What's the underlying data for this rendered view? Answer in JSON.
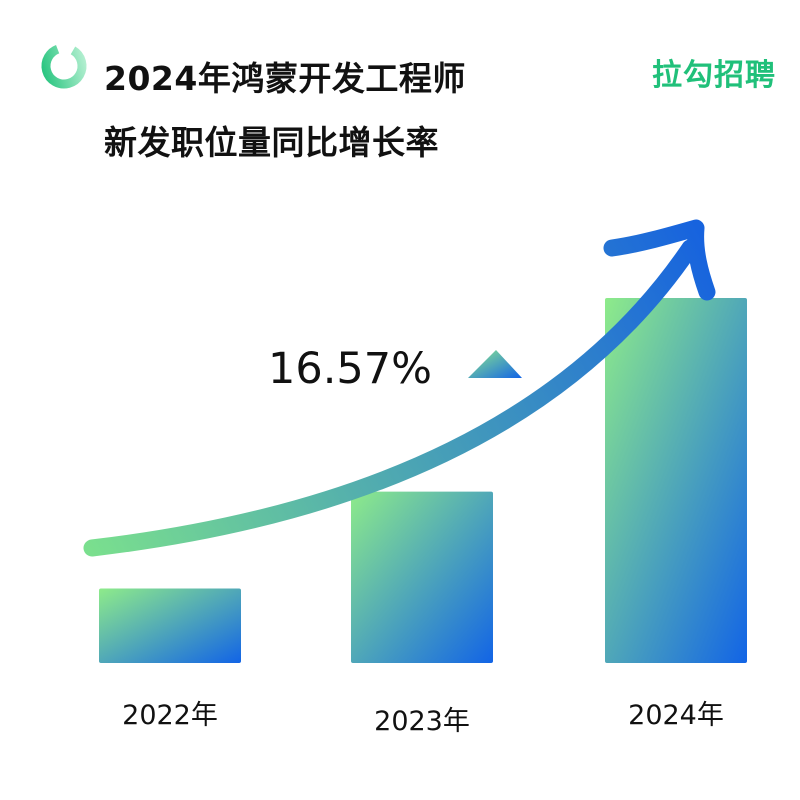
{
  "title_lines": [
    "2024年鸿蒙开发工程师",
    "新发职位量同比增长率"
  ],
  "brand": "拉勾招聘",
  "colors": {
    "bar_top": "#8EEB8A",
    "bar_bottom": "#1264E6",
    "arrow_start": "#7ADF8E",
    "arrow_end": "#1763DE",
    "brand": "#20C07A"
  },
  "chart_data": {
    "type": "bar",
    "title": "2024年鸿蒙开发工程师新发职位量同比增长率",
    "categories": [
      "2022年",
      "2023年",
      "2024年"
    ],
    "values": [
      1.0,
      2.3,
      4.9
    ],
    "y_axis_visible": false,
    "grid": false,
    "annotation": {
      "text": "16.57%",
      "marker": "up-triangle"
    },
    "trend_arrow": true
  }
}
